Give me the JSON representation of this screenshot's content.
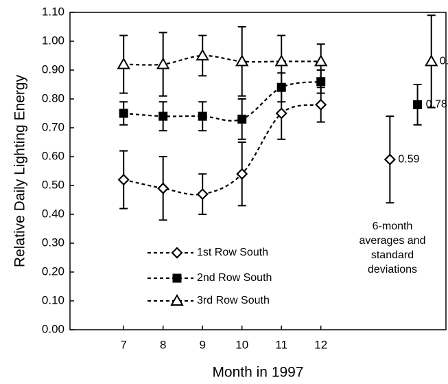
{
  "chart_data": {
    "type": "line",
    "x_label": "Month in 1997",
    "y_label": "Relative Daily Lighting Energy",
    "x": [
      7,
      8,
      9,
      10,
      11,
      12
    ],
    "xlim": [
      5.64,
      15.17
    ],
    "xticks": [
      7,
      8,
      9,
      10,
      11,
      12
    ],
    "ylim": [
      0,
      1.1
    ],
    "yticks": [
      {
        "value": 0,
        "label": "0.00"
      },
      {
        "value": 0.1,
        "label": "0.10"
      },
      {
        "value": 0.2,
        "label": "0.20"
      },
      {
        "value": 0.3,
        "label": "0.30"
      },
      {
        "value": 0.4,
        "label": "0.40"
      },
      {
        "value": 0.5,
        "label": "0.50"
      },
      {
        "value": 0.6,
        "label": "0.60"
      },
      {
        "value": 0.7,
        "label": "0.70"
      },
      {
        "value": 0.8,
        "label": "0.80"
      },
      {
        "value": 0.9,
        "label": "0.90"
      },
      {
        "value": 1.0,
        "label": "1.00"
      },
      {
        "value": 1.1,
        "label": "1.10"
      }
    ],
    "series": [
      {
        "name": "1st Row South",
        "color": "#000000",
        "marker": "diamond",
        "values": [
          0.52,
          0.49,
          0.47,
          0.54,
          0.75,
          0.78
        ],
        "errors": [
          0.1,
          0.11,
          0.07,
          0.11,
          0.09,
          0.06
        ],
        "average_x": 13.75,
        "average": 0.59,
        "average_error": 0.15
      },
      {
        "name": "2nd Row South",
        "color": "#000000",
        "marker": "square",
        "values": [
          0.75,
          0.74,
          0.74,
          0.73,
          0.84,
          0.86
        ],
        "errors": [
          0.04,
          0.05,
          0.05,
          0.07,
          0.05,
          0.04
        ],
        "average_x": 14.45,
        "average": 0.78,
        "average_error": 0.07
      },
      {
        "name": "3rd Row South",
        "color": "#000000",
        "marker": "triangle",
        "values": [
          0.92,
          0.92,
          0.95,
          0.93,
          0.93,
          0.93
        ],
        "errors": [
          0.1,
          0.11,
          0.07,
          0.12,
          0.09,
          0.06
        ],
        "average_x": 14.8,
        "average": 0.93,
        "average_error": 0.16
      }
    ],
    "annotation": [
      "6-month",
      "averages and",
      "standard",
      "deviations"
    ]
  }
}
